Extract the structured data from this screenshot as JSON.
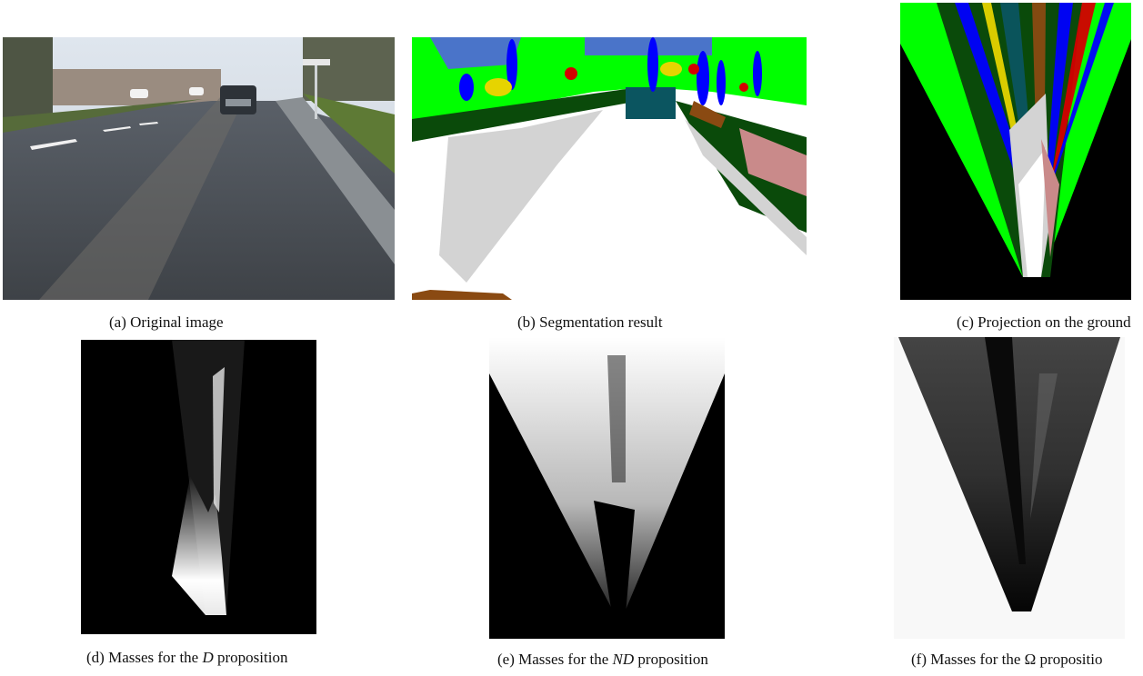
{
  "captions": {
    "a": {
      "label": "(a)",
      "text": "Original image"
    },
    "b": {
      "label": "(b)",
      "text": "Segmentation result"
    },
    "c": {
      "label": "(c)",
      "text": "Projection on the ground"
    },
    "d": {
      "label": "(d)",
      "pre": "Masses for the ",
      "symbol": "D",
      "post": " proposition"
    },
    "e": {
      "label": "(e)",
      "pre": "Masses for the ",
      "symbol": "ND",
      "post": " proposition"
    },
    "f": {
      "label": "(f)",
      "pre": "Masses for the ",
      "symbol": "Ω",
      "post": " propositio"
    }
  },
  "colors": {
    "road": "#ffffff",
    "sidewalk": "#d3d3d3",
    "vegetation": "#00ff00",
    "dark_vegetation": "#0a4a0a",
    "car": "#0b5560",
    "sky": "#4a74c9",
    "pole": "#0000ff",
    "sign": "#e6d400",
    "red": "#d40000",
    "terrain": "#8a4a12",
    "pink": "#c98a8a",
    "background": "#000000"
  }
}
